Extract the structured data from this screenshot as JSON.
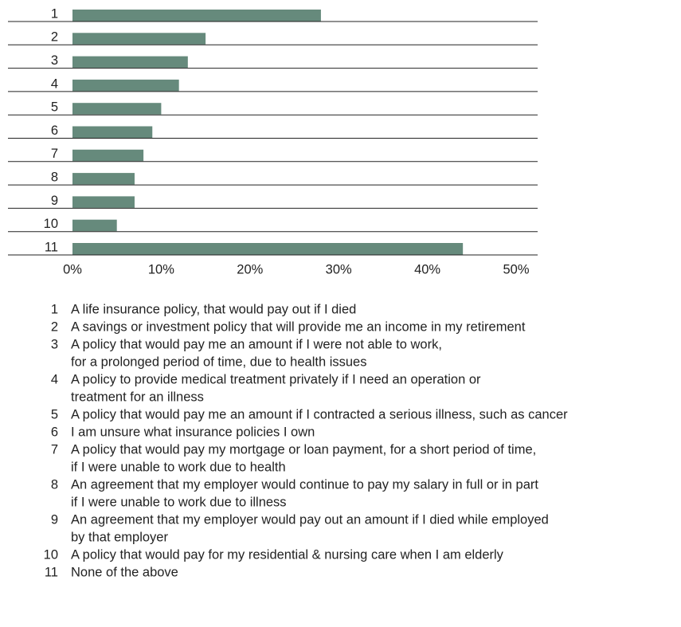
{
  "chart_data": {
    "type": "barh",
    "categories": [
      "1",
      "2",
      "3",
      "4",
      "5",
      "6",
      "7",
      "8",
      "9",
      "10",
      "11"
    ],
    "values": [
      28,
      15,
      13,
      12,
      10,
      9,
      8,
      7,
      7,
      5,
      44
    ],
    "color": "#668a7c",
    "xlim": [
      0,
      50
    ],
    "xticks": [
      {
        "value": 0,
        "label": "0%"
      },
      {
        "value": 10,
        "label": "10%"
      },
      {
        "value": 20,
        "label": "20%"
      },
      {
        "value": 30,
        "label": "30%"
      },
      {
        "value": 40,
        "label": "40%"
      },
      {
        "value": 50,
        "label": "50%"
      }
    ],
    "descriptions": [
      [
        "A life insurance policy, that would pay out if I died"
      ],
      [
        "A savings or investment policy that will provide me an income in my retirement"
      ],
      [
        "A policy that would pay me an amount if I were not able to work,",
        "for a prolonged period of time, due to health issues"
      ],
      [
        "A policy to provide medical treatment privately if I need an operation or",
        "treatment for an illness"
      ],
      [
        "A policy that would pay me an amount if I contracted a serious illness, such as cancer"
      ],
      [
        "I am unsure what insurance policies I own"
      ],
      [
        "A policy that would pay my mortgage or loan payment, for a short period of time,",
        "if I were unable to work due to health"
      ],
      [
        "An agreement that my employer would continue to pay my salary in full or in part",
        "if I were unable to work due to illness"
      ],
      [
        "An agreement that my employer would pay out an amount if I died while employed",
        "by that employer"
      ],
      [
        "A policy that would pay for my residential & nursing care when I am elderly"
      ],
      [
        "None of the above"
      ]
    ]
  }
}
